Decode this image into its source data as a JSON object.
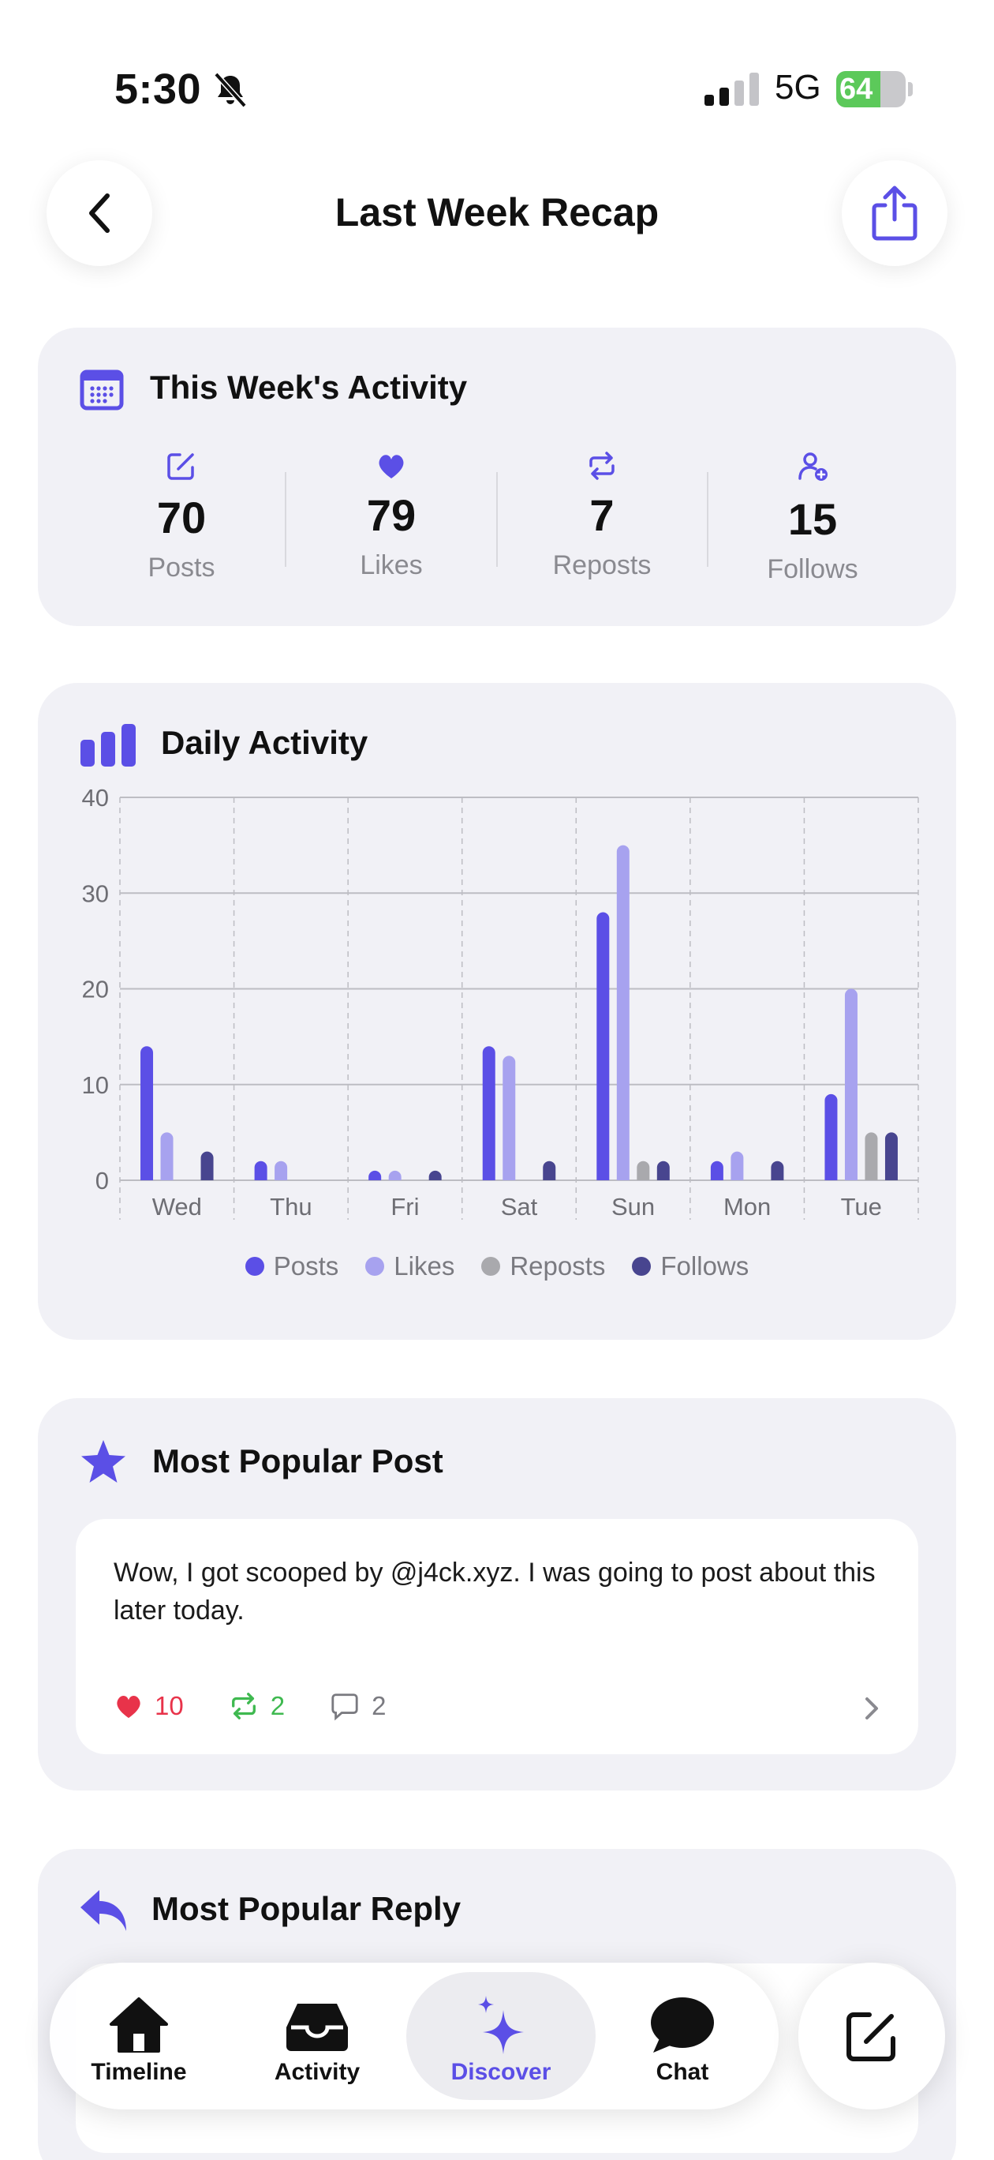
{
  "status": {
    "time": "5:30",
    "network": "5G",
    "battery": "64",
    "battery_level": 0.64
  },
  "header": {
    "title": "Last Week Recap",
    "back_icon": "chevron-left-icon",
    "share_icon": "share-icon"
  },
  "activity": {
    "title": "This Week's Activity",
    "stats": [
      {
        "value": "70",
        "label": "Posts",
        "icon": "compose-icon"
      },
      {
        "value": "79",
        "label": "Likes",
        "icon": "heart-icon"
      },
      {
        "value": "7",
        "label": "Reposts",
        "icon": "repost-icon"
      },
      {
        "value": "15",
        "label": "Follows",
        "icon": "person-add-icon"
      }
    ]
  },
  "daily": {
    "title": "Daily Activity"
  },
  "chart_data": {
    "type": "bar",
    "title": "Daily Activity",
    "categories": [
      "Wed",
      "Thu",
      "Fri",
      "Sat",
      "Sun",
      "Mon",
      "Tue"
    ],
    "ylim": [
      0,
      40
    ],
    "yticks": [
      "0",
      "10",
      "20",
      "30",
      "40"
    ],
    "grid": true,
    "legend_position": "bottom",
    "series": [
      {
        "name": "Posts",
        "color": "#5b4fe6",
        "values": [
          14,
          2,
          1,
          14,
          28,
          2,
          9
        ]
      },
      {
        "name": "Likes",
        "color": "#a7a2ef",
        "values": [
          5,
          2,
          1,
          13,
          35,
          3,
          20
        ]
      },
      {
        "name": "Reposts",
        "color": "#a9a9ad",
        "values": [
          0,
          0,
          0,
          0,
          2,
          0,
          5
        ]
      },
      {
        "name": "Follows",
        "color": "#48458f",
        "values": [
          3,
          0,
          1,
          2,
          2,
          2,
          5
        ]
      }
    ]
  },
  "popular_post": {
    "title": "Most Popular Post",
    "text": "Wow, I got scooped by @j4ck.xyz. I was going to post about this later today.",
    "likes": "10",
    "reposts": "2",
    "replies": "2"
  },
  "popular_reply": {
    "title": "Most Popular Reply"
  },
  "tabbar": {
    "tabs": [
      {
        "label": "Timeline",
        "icon": "home-icon"
      },
      {
        "label": "Activity",
        "icon": "inbox-icon"
      },
      {
        "label": "Discover",
        "icon": "sparkles-icon",
        "active": true
      },
      {
        "label": "Chat",
        "icon": "chat-bubble-icon"
      }
    ],
    "compose_icon": "compose-icon"
  },
  "colors": {
    "accent": "#5b4fe6",
    "card_bg": "#f1f1f6",
    "like_red": "#e8334a",
    "repost_green": "#3fb950",
    "muted": "#8a8a90"
  }
}
